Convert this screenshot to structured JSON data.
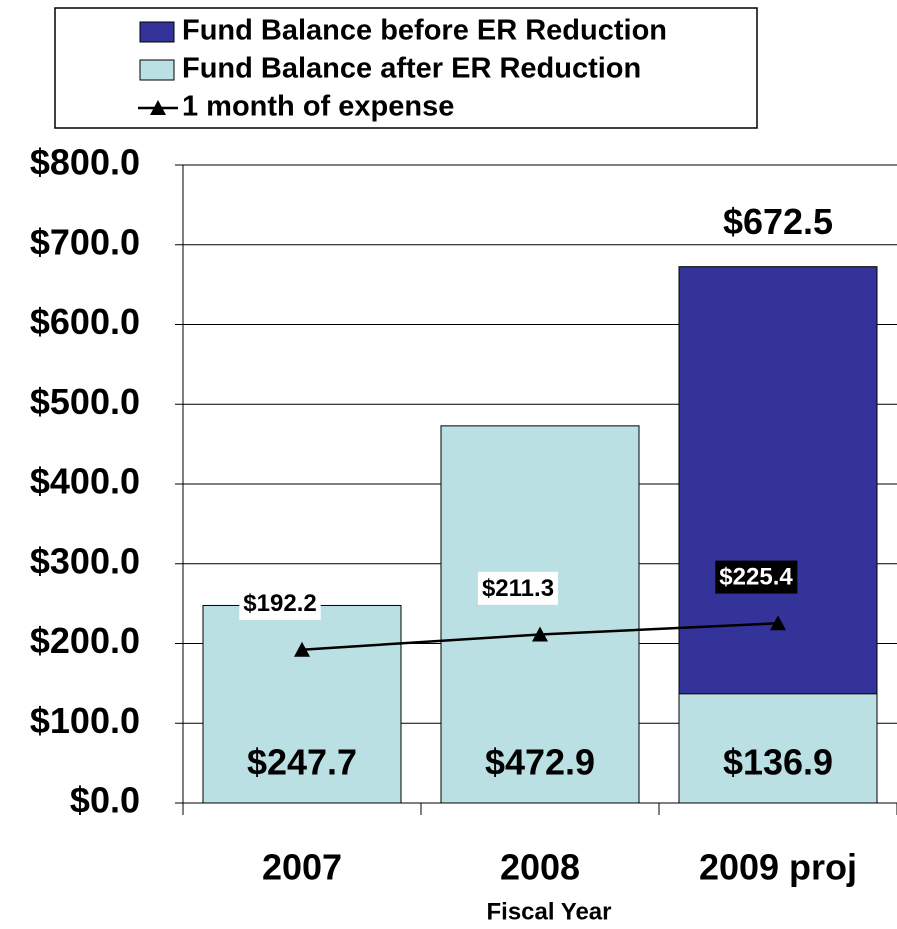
{
  "chart_data": {
    "type": "bar",
    "x_label": "Fiscal Year",
    "categories": [
      "2007",
      "2008",
      "2009 proj"
    ],
    "series": [
      {
        "name": "Fund Balance before ER Reduction",
        "type": "bar",
        "color": "#333399",
        "values": [
          null,
          null,
          672.5
        ],
        "value_labels": [
          null,
          null,
          "$672.5"
        ]
      },
      {
        "name": "Fund Balance after ER Reduction",
        "type": "bar",
        "color": "#bbe0e3",
        "values": [
          247.7,
          472.9,
          136.9
        ],
        "value_labels": [
          "$247.7",
          "$472.9",
          "$136.9"
        ]
      },
      {
        "name": "1 month of expense",
        "type": "line",
        "color": "#000000",
        "marker": "triangle",
        "values": [
          192.2,
          211.3,
          225.4
        ],
        "value_labels": [
          "$192.2",
          "$211.3",
          "$225.4"
        ],
        "value_label_backgrounds": [
          "#ffffff",
          "#ffffff",
          "#000000"
        ]
      }
    ],
    "ylim": [
      0,
      800
    ],
    "yticks": [
      {
        "value": 0,
        "label": "$0.0"
      },
      {
        "value": 100,
        "label": "$100.0"
      },
      {
        "value": 200,
        "label": "$200.0"
      },
      {
        "value": 300,
        "label": "$300.0"
      },
      {
        "value": 400,
        "label": "$400.0"
      },
      {
        "value": 500,
        "label": "$500.0"
      },
      {
        "value": 600,
        "label": "$600.0"
      },
      {
        "value": 700,
        "label": "$700.0"
      },
      {
        "value": 800,
        "label": "$800.0"
      }
    ],
    "grid": true
  }
}
